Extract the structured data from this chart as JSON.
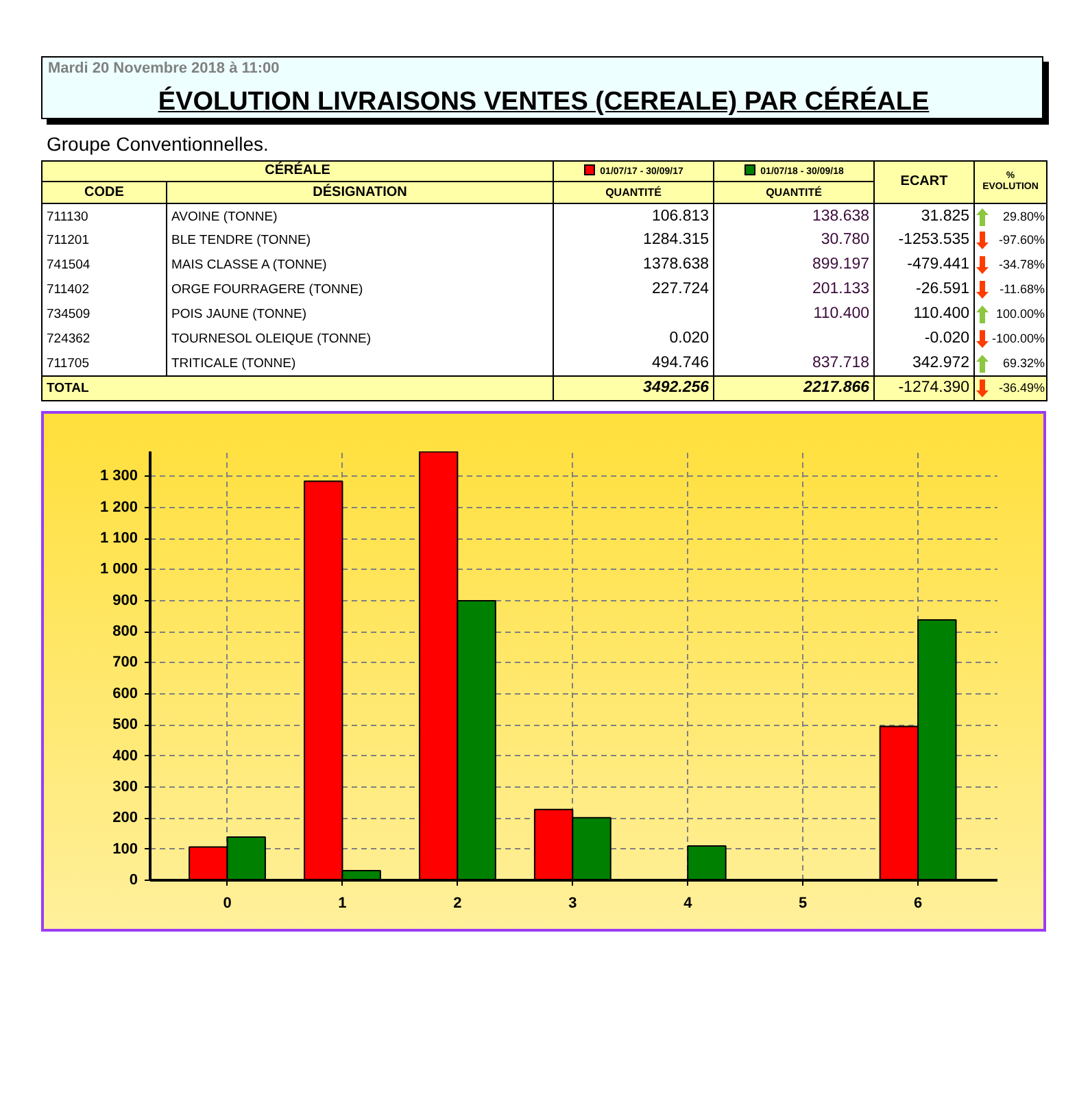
{
  "chart_data": {
    "type": "bar",
    "title": "ÉVOLUTION LIVRAISONS VENTES (CEREALE) PAR CÉRÉALE",
    "subtitle": "Groupe Conventionnelles.",
    "annotations": [
      "Mardi 20 Novembre 2018 à 11:00",
      "CÉRÉALE",
      "CODE",
      "DÉSIGNATION",
      "QUANTITÉ",
      "QUANTITÉ",
      "ECART",
      "%",
      "EVOLUTION",
      "711130",
      "AVOINE (TONNE)",
      "106.813",
      "138.638",
      "31.825",
      "29.80%",
      "711201",
      "BLE TENDRE (TONNE)",
      "1284.315",
      "30.780",
      "-1253.535",
      "-97.60%",
      "741504",
      "MAIS CLASSE A (TONNE)",
      "1378.638",
      "899.197",
      "-479.441",
      "-34.78%",
      "711402",
      "ORGE FOURRAGERE (TONNE)",
      "227.724",
      "201.133",
      "-26.591",
      "-11.68%",
      "734509",
      "POIS JAUNE (TONNE)",
      "110.400",
      "110.400",
      "100.00%",
      "724362",
      "TOURNESOL OLEIQUE (TONNE)",
      "0.020",
      "-0.020",
      "-100.00%",
      "711705",
      "TRITICALE (TONNE)",
      "494.746",
      "837.718",
      "342.972",
      "69.32%",
      "TOTAL",
      "3492.256",
      "2217.866",
      "-1274.390",
      "-36.49%"
    ],
    "categories": [
      "0",
      "1",
      "2",
      "3",
      "4",
      "5",
      "6"
    ],
    "series": [
      {
        "name": "01/07/17 - 30/09/17",
        "color": "#ff0000",
        "values": [
          106.813,
          1284.315,
          1378.638,
          227.724,
          null,
          0.02,
          494.746
        ]
      },
      {
        "name": "01/07/18 - 30/09/18",
        "color": "#008000",
        "values": [
          138.638,
          30.78,
          899.197,
          201.133,
          110.4,
          null,
          837.718
        ]
      }
    ],
    "ylim": [
      0,
      1380
    ],
    "yticks": [
      0,
      100,
      200,
      300,
      400,
      500,
      600,
      700,
      800,
      900,
      {
        "value": 1000,
        "label": "1 000"
      },
      {
        "value": 1100,
        "label": "1 100"
      },
      {
        "value": 1200,
        "label": "1 200"
      },
      {
        "value": 1300,
        "label": "1 300"
      }
    ],
    "grid": true,
    "legend": "top"
  }
}
